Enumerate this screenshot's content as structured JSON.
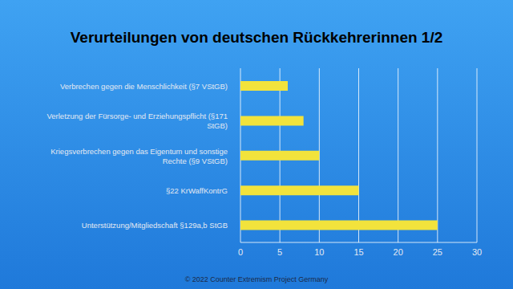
{
  "chart_data": {
    "type": "bar",
    "orientation": "horizontal",
    "title": "Verurteilungen von deutschen Rückkehrerinnen 1/2",
    "categories": [
      "Verbrechen gegen die Menschlichkeit (§7 VStGB)",
      "Verletzung der Fürsorge- und Erziehungspflicht (§171 StGB)",
      "Kriegsverbrechen gegen das Eigentum und sonstige Rechte (§9 VStGB)",
      "§22 KrWaffKontrG",
      "Unterstützung/Mitgliedschaft §129a,b StGB"
    ],
    "values": [
      6,
      8,
      10,
      15,
      25
    ],
    "color": "#f2e33c",
    "xlim": [
      0,
      30
    ],
    "xticks": [
      0,
      5,
      10,
      15,
      20,
      25,
      30
    ],
    "grid": true,
    "annotations": [
      "© 2022 Counter Extremism Project Germany"
    ]
  }
}
